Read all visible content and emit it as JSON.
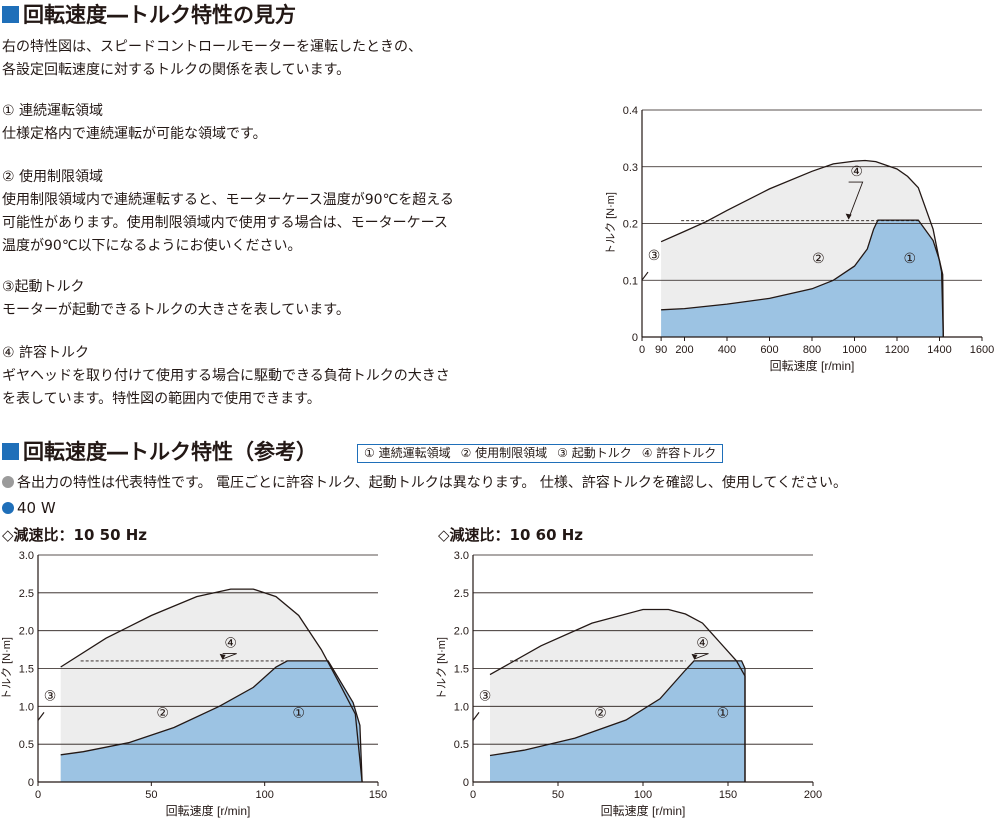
{
  "section1": {
    "title": "回転速度―トルク特性の見方",
    "intro": [
      "右の特性図は、スピードコントロールモーターを運転したときの、",
      "各設定回転速度に対するトルクの関係を表しています。"
    ],
    "items": [
      {
        "heading": "① 連続運転領域",
        "lines": [
          "仕様定格内で連続運転が可能な領域です。"
        ]
      },
      {
        "heading": "② 使用制限領域",
        "lines": [
          "使用制限領域内で連続運転すると、モーターケース温度が90℃を超える",
          "可能性があります。使用制限領域内で使用する場合は、モーターケース",
          "温度が90℃以下になるようにお使いください。"
        ]
      },
      {
        "heading": "③起動トルク",
        "lines": [
          "モーターが起動できるトルクの大きさを表しています。"
        ]
      },
      {
        "heading": "④ 許容トルク",
        "lines": [
          "ギヤヘッドを取り付けて使用する場合に駆動できる負荷トルクの大きさ",
          "を表しています。特性図の範囲内で使用できます。"
        ]
      }
    ]
  },
  "section2": {
    "title": "回転速度―トルク特性（参考）",
    "legend": [
      "① 連続運転領域",
      "② 使用制限領域",
      "③ 起動トルク",
      "④ 許容トルク"
    ],
    "note": "各出力の特性は代表特性です。 電圧ごとに許容トルク、起動トルクは異なります。 仕様、許容トルクを確認し、使用してください。",
    "power": "40 W",
    "chart_labels": [
      "◇減速比：10  50 Hz",
      "◇減速比：10  60 Hz"
    ]
  },
  "colors": {
    "accent": "#1f6fb9",
    "region1": "#9cc3e3",
    "region2": "#ededed",
    "note_dot": "#9b9b9b"
  },
  "chart_data": [
    {
      "type": "area",
      "xlabel": "回転速度 [r/min]",
      "ylabel": "トルク [N·m]",
      "xlim": [
        0,
        1600
      ],
      "ylim": [
        0,
        0.4
      ],
      "xticks": [
        0,
        90,
        200,
        400,
        600,
        800,
        1000,
        1200,
        1400,
        1600
      ],
      "yticks": [
        0,
        0.1,
        0.2,
        0.3,
        0.4
      ],
      "yticklabels": [
        "0",
        "0.1",
        "0.2",
        "0.3",
        "0.4"
      ],
      "region_labels": [
        "①",
        "②",
        "③",
        "④"
      ],
      "continuous_upper": [
        [
          90,
          0.048
        ],
        [
          200,
          0.05
        ],
        [
          400,
          0.058
        ],
        [
          600,
          0.068
        ],
        [
          800,
          0.085
        ],
        [
          900,
          0.1
        ],
        [
          1000,
          0.125
        ],
        [
          1060,
          0.155
        ],
        [
          1090,
          0.19
        ],
        [
          1110,
          0.206
        ],
        [
          1300,
          0.206
        ],
        [
          1370,
          0.17
        ],
        [
          1400,
          0.135
        ],
        [
          1415,
          0.11
        ],
        [
          1418,
          0
        ]
      ],
      "limited_upper": [
        [
          90,
          0.168
        ],
        [
          200,
          0.186
        ],
        [
          300,
          0.203
        ],
        [
          400,
          0.223
        ],
        [
          600,
          0.261
        ],
        [
          800,
          0.292
        ],
        [
          900,
          0.305
        ],
        [
          1000,
          0.31
        ],
        [
          1050,
          0.311
        ],
        [
          1100,
          0.309
        ],
        [
          1200,
          0.296
        ],
        [
          1250,
          0.283
        ],
        [
          1300,
          0.263
        ],
        [
          1370,
          0.19
        ],
        [
          1410,
          0.115
        ],
        [
          1418,
          0
        ]
      ],
      "permissible_torque": 0.205,
      "starting_torque": 0.125
    },
    {
      "type": "area",
      "xlabel": "回転速度 [r/min]",
      "ylabel": "トルク [N·m]",
      "xlim": [
        0,
        150
      ],
      "ylim": [
        0,
        3.0
      ],
      "xticks": [
        0,
        50,
        100,
        150
      ],
      "yticks": [
        0,
        0.5,
        1.0,
        1.5,
        2.0,
        2.5,
        3.0
      ],
      "yticklabels": [
        "0",
        "0.5",
        "1.0",
        "1.5",
        "2.0",
        "2.5",
        "3.0"
      ],
      "region_labels": [
        "①",
        "②",
        "③",
        "④"
      ],
      "continuous_upper": [
        [
          10,
          0.36
        ],
        [
          20,
          0.4
        ],
        [
          40,
          0.52
        ],
        [
          60,
          0.72
        ],
        [
          80,
          1.0
        ],
        [
          95,
          1.25
        ],
        [
          105,
          1.52
        ],
        [
          110,
          1.6
        ],
        [
          128,
          1.6
        ],
        [
          134,
          1.3
        ],
        [
          139,
          1.05
        ],
        [
          142,
          0.75
        ],
        [
          143,
          0
        ]
      ],
      "limited_upper": [
        [
          10,
          1.52
        ],
        [
          30,
          1.9
        ],
        [
          50,
          2.2
        ],
        [
          70,
          2.45
        ],
        [
          85,
          2.55
        ],
        [
          95,
          2.55
        ],
        [
          105,
          2.45
        ],
        [
          115,
          2.2
        ],
        [
          125,
          1.75
        ],
        [
          133,
          1.3
        ],
        [
          140,
          0.9
        ],
        [
          143,
          0
        ]
      ],
      "permissible_torque": 1.6,
      "starting_torque": 1.0
    },
    {
      "type": "area",
      "xlabel": "回転速度 [r/min]",
      "ylabel": "トルク [N·m]",
      "xlim": [
        0,
        200
      ],
      "ylim": [
        0,
        3.0
      ],
      "xticks": [
        0,
        50,
        100,
        150,
        200
      ],
      "yticks": [
        0,
        0.5,
        1.0,
        1.5,
        2.0,
        2.5,
        3.0
      ],
      "yticklabels": [
        "0",
        "0.5",
        "1.0",
        "1.5",
        "2.0",
        "2.5",
        "3.0"
      ],
      "region_labels": [
        "①",
        "②",
        "③",
        "④"
      ],
      "continuous_upper": [
        [
          10,
          0.35
        ],
        [
          30,
          0.42
        ],
        [
          60,
          0.58
        ],
        [
          90,
          0.82
        ],
        [
          110,
          1.1
        ],
        [
          125,
          1.48
        ],
        [
          130,
          1.6
        ],
        [
          158,
          1.6
        ],
        [
          160,
          1.5
        ],
        [
          160,
          0
        ]
      ],
      "limited_upper": [
        [
          10,
          1.42
        ],
        [
          40,
          1.8
        ],
        [
          70,
          2.1
        ],
        [
          100,
          2.28
        ],
        [
          115,
          2.28
        ],
        [
          125,
          2.22
        ],
        [
          135,
          2.1
        ],
        [
          145,
          1.85
        ],
        [
          155,
          1.6
        ],
        [
          160,
          1.4
        ],
        [
          160,
          0
        ]
      ],
      "permissible_torque": 1.6,
      "starting_torque": 1.0
    }
  ]
}
